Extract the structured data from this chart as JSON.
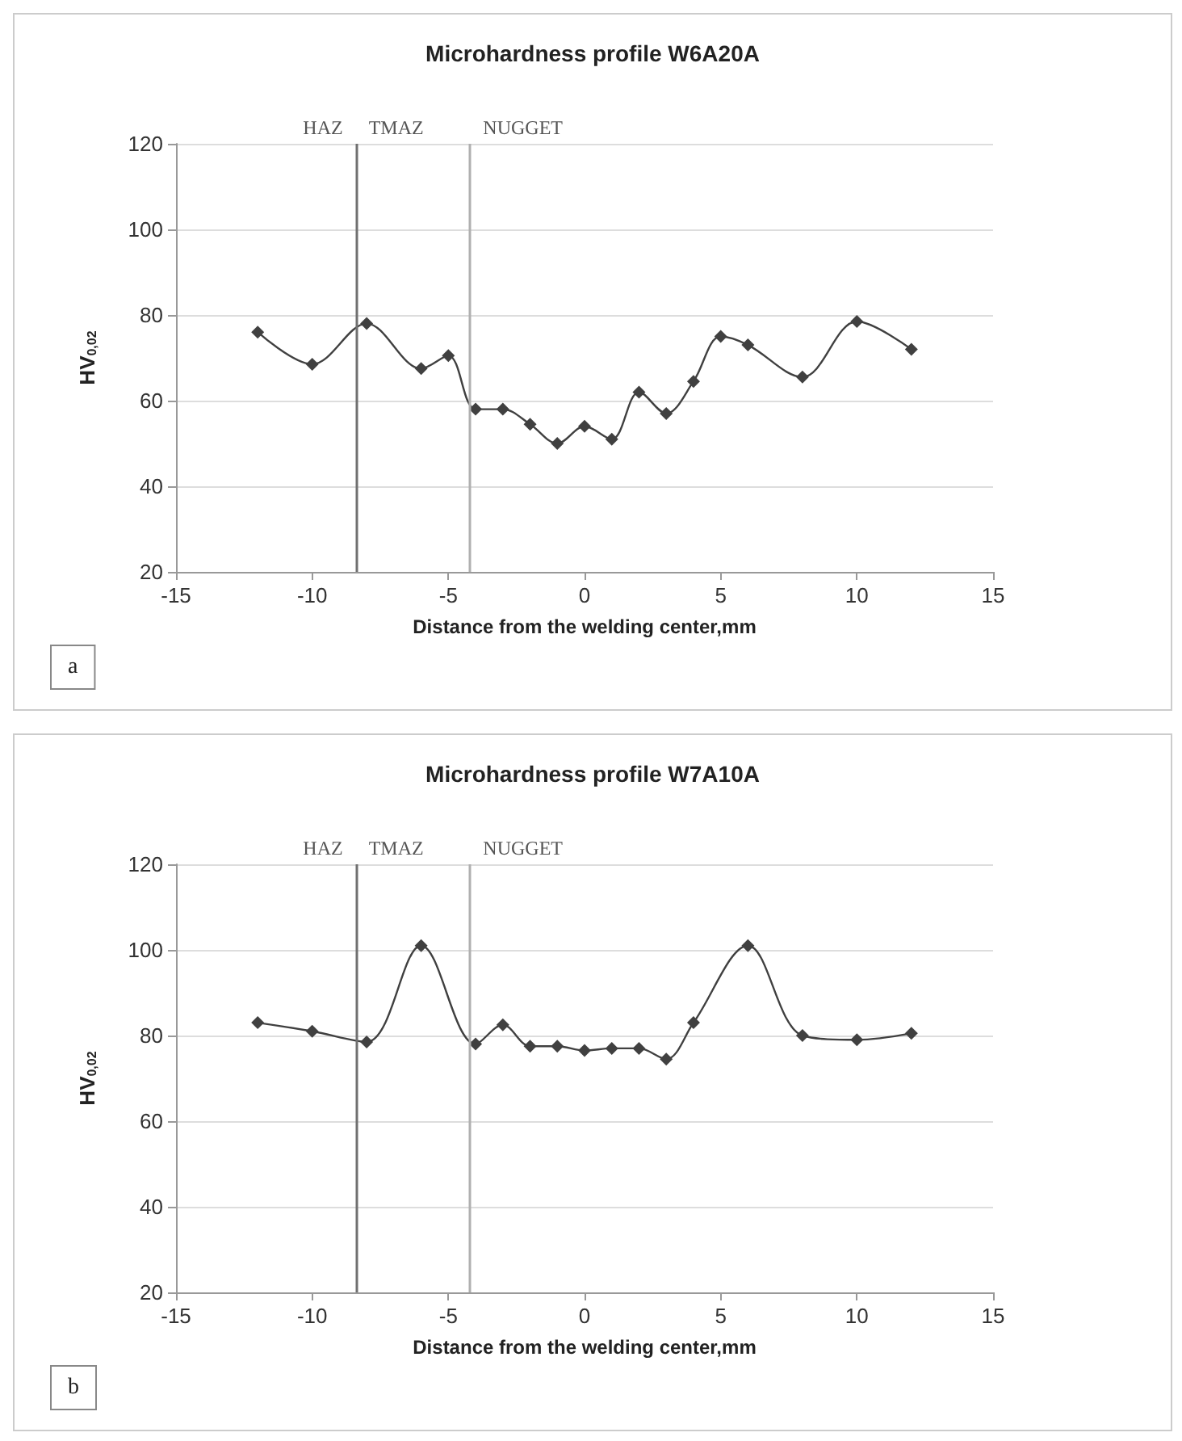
{
  "chart_data": [
    {
      "type": "line",
      "title": "Microhardness profile W6A20A",
      "xlabel": "Distance from the welding center,mm",
      "ylabel": "HV$_{0,02}$",
      "x": [
        -12,
        -10,
        -8,
        -6,
        -5,
        -4,
        -3,
        -2,
        -1,
        0,
        1,
        2,
        3,
        4,
        5,
        6,
        8,
        10,
        12
      ],
      "series": [
        {
          "color": "#404040",
          "values": [
            76,
            68.5,
            78,
            67.5,
            70.5,
            58,
            58,
            54.5,
            50,
            54,
            51,
            62,
            57,
            64.5,
            75,
            73,
            65.5,
            78.5,
            72
          ]
        }
      ],
      "xlim": [
        -15,
        15
      ],
      "xticks": [
        -15,
        -10,
        -5,
        0,
        5,
        10,
        15
      ],
      "ylim": [
        20,
        120
      ],
      "yticks": [
        20,
        40,
        60,
        80,
        100,
        120
      ],
      "ref_lines": [
        {
          "axis": "x",
          "value": -8.4,
          "color": "#707070"
        },
        {
          "axis": "x",
          "value": -4.2,
          "color": "#b0b0b0"
        }
      ],
      "annotations": [
        "a",
        "HAZ",
        "TMAZ",
        "NUGGET"
      ],
      "grid": "y",
      "marker": "diamond",
      "line_style": "solid"
    },
    {
      "type": "line",
      "title": "Microhardness profile W7A10A",
      "xlabel": "Distance from the welding center,mm",
      "ylabel": "HV$_{0,02}$",
      "x": [
        -12,
        -10,
        -8,
        -6,
        -4,
        -3,
        -2,
        -1,
        0,
        1,
        2,
        3,
        4,
        6,
        8,
        10,
        12
      ],
      "series": [
        {
          "color": "#404040",
          "values": [
            83,
            81,
            78.5,
            101,
            78,
            82.5,
            77.5,
            77.5,
            76.5,
            77,
            77,
            74.5,
            83,
            101,
            80,
            79,
            80.5
          ]
        }
      ],
      "xlim": [
        -15,
        15
      ],
      "xticks": [
        -15,
        -10,
        -5,
        0,
        5,
        10,
        15
      ],
      "ylim": [
        20,
        120
      ],
      "yticks": [
        20,
        40,
        60,
        80,
        100,
        120
      ],
      "ref_lines": [
        {
          "axis": "x",
          "value": -8.4,
          "color": "#707070"
        },
        {
          "axis": "x",
          "value": -4.2,
          "color": "#b0b0b0"
        }
      ],
      "annotations": [
        "b",
        "HAZ",
        "TMAZ",
        "NUGGET"
      ],
      "grid": "y",
      "marker": "diamond",
      "line_style": "solid"
    }
  ]
}
